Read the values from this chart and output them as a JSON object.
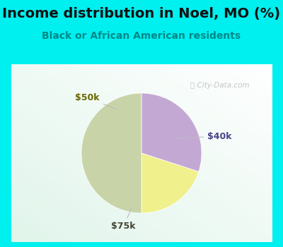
{
  "title": "Income distribution in Noel, MO (%)",
  "subtitle": "Black or African American residents",
  "slices": [
    {
      "label": "$40k",
      "value": 30,
      "color": "#C4A8D4"
    },
    {
      "label": "$50k",
      "value": 20,
      "color": "#F0F08C"
    },
    {
      "label": "$75k",
      "value": 50,
      "color": "#C8D4A8"
    }
  ],
  "bg_cyan": "#00EFEF",
  "chart_bg_color": "#E8F5EE",
  "title_color": "#111111",
  "subtitle_color": "#008888",
  "watermark": "City-Data.com",
  "title_fontsize": 14,
  "subtitle_fontsize": 10,
  "label_fontsize": 9,
  "label_colors": [
    "#444488",
    "#666600",
    "#444433"
  ],
  "annotation_line_color": "#BBBBBB",
  "border_color": "#00EFEF",
  "border_width": 6
}
